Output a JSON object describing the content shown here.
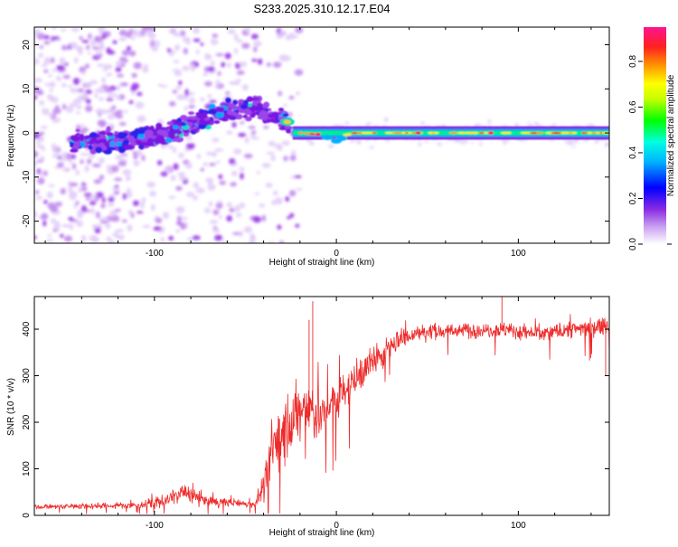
{
  "title": "S233.2025.310.12.17.E04",
  "colors": {
    "snr_line": "#ee2a2a",
    "axis": "#000000",
    "background": "#ffffff"
  },
  "chart_data": [
    {
      "id": "spectrogram",
      "type": "heatmap",
      "xlabel": "Height of straight line (km)",
      "ylabel": "Frequency (Hz)",
      "xlim": [
        -166,
        150
      ],
      "ylim": [
        -25,
        24
      ],
      "x_ticks": [
        -100,
        0,
        100
      ],
      "x_tick_labels": [
        "-100",
        "0",
        "100"
      ],
      "y_ticks": [
        -20,
        -10,
        0,
        10,
        20
      ],
      "y_tick_labels": [
        "-20",
        "-10",
        "0",
        "10",
        "20"
      ],
      "colorbar": {
        "label": "Normalized spectral amplitude",
        "range": [
          0,
          0.95
        ],
        "ticks": [
          0.0,
          0.2,
          0.4,
          0.6,
          0.8
        ],
        "tick_labels": [
          "0.0",
          "0.2",
          "0.4",
          "0.6",
          "0.8"
        ],
        "colormap": [
          "#ffffff",
          "#8a2be2",
          "#0000ff",
          "#00ffff",
          "#00ff00",
          "#ffff00",
          "#ff7f00",
          "#ff0000",
          "#ff1493"
        ]
      },
      "ridge_x": [
        -166,
        -130,
        -100,
        -80,
        -60,
        -45,
        -35,
        -28,
        -24,
        -20,
        0,
        150
      ],
      "ridge_freq": [
        -2,
        -2,
        -1,
        2,
        5,
        6,
        4,
        2.5,
        0,
        0,
        -1.5,
        0
      ]
    },
    {
      "id": "snr",
      "type": "line",
      "xlabel": "Height of straight line (km)",
      "ylabel": "SNR (10 * v/v)",
      "xlim": [
        -166,
        150
      ],
      "ylim": [
        0,
        470
      ],
      "x_ticks": [
        -100,
        0,
        100
      ],
      "x_tick_labels": [
        "-100",
        "0",
        "100"
      ],
      "y_ticks": [
        0,
        100,
        200,
        300,
        400
      ],
      "y_tick_labels": [
        "0",
        "100",
        "200",
        "300",
        "400"
      ],
      "trend_x": [
        -166,
        -110,
        -95,
        -85,
        -70,
        -45,
        -40,
        -35,
        -25,
        -15,
        -8,
        0,
        10,
        20,
        35,
        50,
        90,
        110,
        150
      ],
      "trend_y": [
        18,
        22,
        30,
        50,
        30,
        24,
        60,
        150,
        200,
        230,
        210,
        250,
        290,
        330,
        380,
        395,
        400,
        390,
        410
      ],
      "trend_noise": [
        6,
        8,
        18,
        22,
        14,
        8,
        40,
        80,
        90,
        90,
        70,
        60,
        50,
        40,
        25,
        20,
        20,
        22,
        22
      ]
    }
  ]
}
